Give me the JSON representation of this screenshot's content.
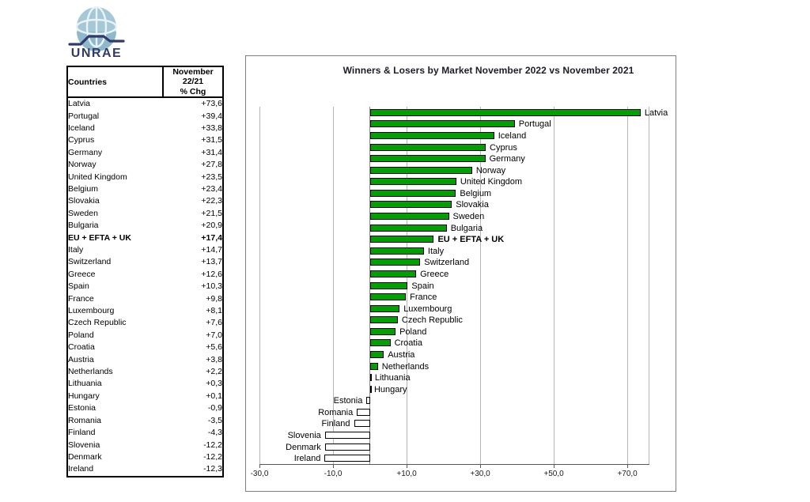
{
  "logo": {
    "text": "UNRAE",
    "globe_color": "#a5c8d6",
    "accent_color": "#323a6a"
  },
  "table": {
    "header_col1": "Countries",
    "header_col2_line1": "November 22/21",
    "header_col2_line2": "% Chg",
    "rows": [
      {
        "country": "Latvia",
        "value": "+73,6",
        "bold": false
      },
      {
        "country": "Portugal",
        "value": "+39,4",
        "bold": false
      },
      {
        "country": "Iceland",
        "value": "+33,8",
        "bold": false
      },
      {
        "country": "Cyprus",
        "value": "+31,5",
        "bold": false
      },
      {
        "country": "Germany",
        "value": "+31,4",
        "bold": false
      },
      {
        "country": "Norway",
        "value": "+27,8",
        "bold": false
      },
      {
        "country": "United Kingdom",
        "value": "+23,5",
        "bold": false
      },
      {
        "country": "Belgium",
        "value": "+23,4",
        "bold": false
      },
      {
        "country": "Slovakia",
        "value": "+22,3",
        "bold": false
      },
      {
        "country": "Sweden",
        "value": "+21,5",
        "bold": false
      },
      {
        "country": "Bulgaria",
        "value": "+20,9",
        "bold": false
      },
      {
        "country": "EU + EFTA + UK",
        "value": "+17,4",
        "bold": true
      },
      {
        "country": "Italy",
        "value": "+14,7",
        "bold": false
      },
      {
        "country": "Switzerland",
        "value": "+13,7",
        "bold": false
      },
      {
        "country": "Greece",
        "value": "+12,6",
        "bold": false
      },
      {
        "country": "Spain",
        "value": "+10,3",
        "bold": false
      },
      {
        "country": "France",
        "value": "+9,8",
        "bold": false
      },
      {
        "country": "Luxembourg",
        "value": "+8,1",
        "bold": false
      },
      {
        "country": "Czech Republic",
        "value": "+7,6",
        "bold": false
      },
      {
        "country": "Poland",
        "value": "+7,0",
        "bold": false
      },
      {
        "country": "Croatia",
        "value": "+5,6",
        "bold": false
      },
      {
        "country": "Austria",
        "value": "+3,8",
        "bold": false
      },
      {
        "country": "Netherlands",
        "value": "+2,2",
        "bold": false
      },
      {
        "country": "Lithuania",
        "value": "+0,3",
        "bold": false
      },
      {
        "country": "Hungary",
        "value": "+0,1",
        "bold": false
      },
      {
        "country": "Estonia",
        "value": "-0,9",
        "bold": false
      },
      {
        "country": "Romania",
        "value": "-3,5",
        "bold": false
      },
      {
        "country": "Finland",
        "value": "-4,3",
        "bold": false
      },
      {
        "country": "Slovenia",
        "value": "-12,2",
        "bold": false
      },
      {
        "country": "Denmark",
        "value": "-12,2",
        "bold": false
      },
      {
        "country": "Ireland",
        "value": "-12,3",
        "bold": false
      }
    ]
  },
  "chart_data": {
    "type": "bar",
    "orientation": "horizontal",
    "title": "Winners & Losers by Market November 2022 vs November 2021",
    "categories": [
      "Latvia",
      "Portugal",
      "Iceland",
      "Cyprus",
      "Germany",
      "Norway",
      "United Kingdom",
      "Belgium",
      "Slovakia",
      "Sweden",
      "Bulgaria",
      "EU + EFTA + UK",
      "Italy",
      "Switzerland",
      "Greece",
      "Spain",
      "France",
      "Luxembourg",
      "Czech Republic",
      "Poland",
      "Croatia",
      "Austria",
      "Netherlands",
      "Lithuania",
      "Hungary",
      "Estonia",
      "Romania",
      "Finland",
      "Slovenia",
      "Denmark",
      "Ireland"
    ],
    "values": [
      73.6,
      39.4,
      33.8,
      31.5,
      31.4,
      27.8,
      23.5,
      23.4,
      22.3,
      21.5,
      20.9,
      17.4,
      14.7,
      13.7,
      12.6,
      10.3,
      9.8,
      8.1,
      7.6,
      7.0,
      5.6,
      3.8,
      2.2,
      0.3,
      0.1,
      -0.9,
      -3.5,
      -4.3,
      -12.2,
      -12.2,
      -12.3
    ],
    "xlim": [
      -30,
      76
    ],
    "xticks": [
      -30,
      -10,
      10,
      30,
      50,
      70
    ],
    "xtick_labels": [
      "-30,0",
      "-10,0",
      "+10,0",
      "+30,0",
      "+50,0",
      "+70,0"
    ],
    "grid": true,
    "legend": false,
    "positive_color": "#00a000",
    "negative_color": "#ffffff",
    "bar_border_color": "#000000",
    "bold_category": "EU + EFTA + UK"
  }
}
